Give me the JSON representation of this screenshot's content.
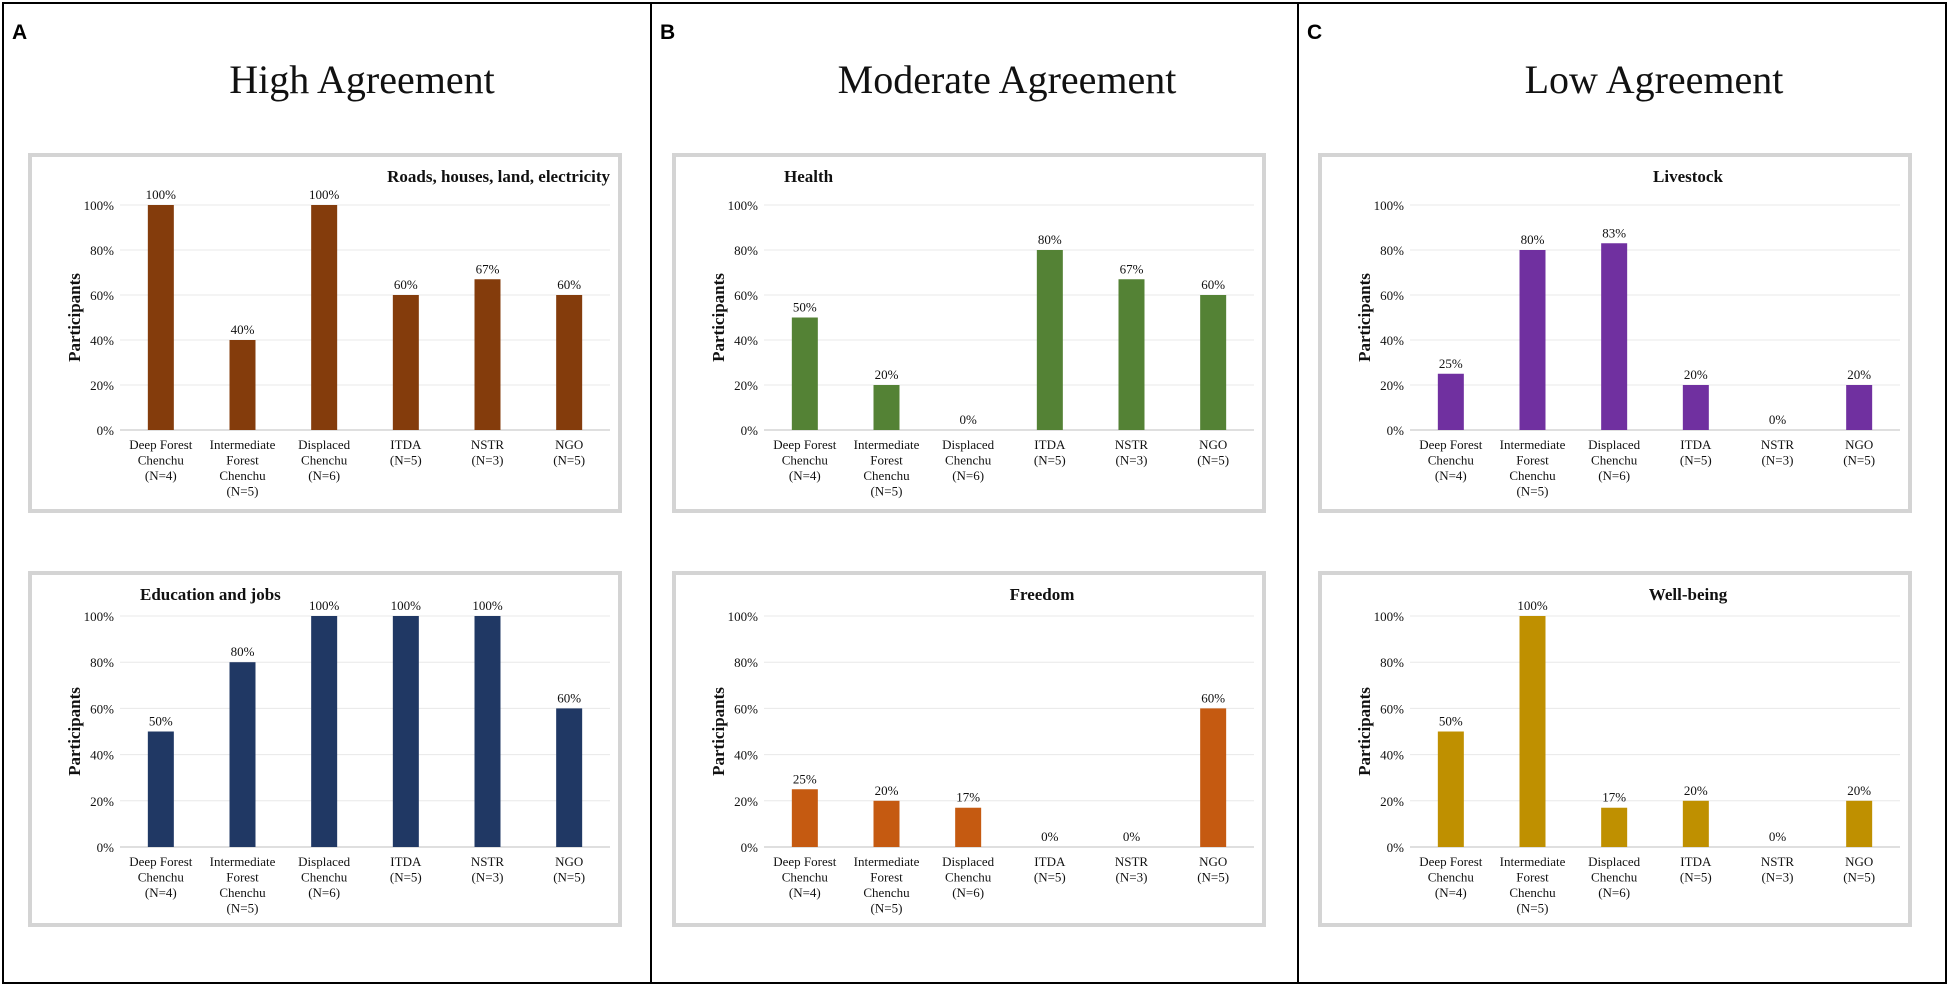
{
  "figure": {
    "panels": [
      {
        "letter": "A",
        "heading": "High Agreement"
      },
      {
        "letter": "B",
        "heading": "Moderate Agreement"
      },
      {
        "letter": "C",
        "heading": "Low Agreement"
      }
    ],
    "y_axis_label": "Participants",
    "y_tick_labels": [
      "0%",
      "20%",
      "40%",
      "60%",
      "80%",
      "100%"
    ],
    "category_labels": [
      [
        "Deep Forest",
        "Chenchu",
        "(N=4)"
      ],
      [
        "Intermediate",
        "Forest",
        "Chenchu",
        "(N=5)"
      ],
      [
        "Displaced",
        "Chenchu",
        "(N=6)"
      ],
      [
        "ITDA",
        "(N=5)"
      ],
      [
        "NSTR",
        "(N=3)"
      ],
      [
        "NGO",
        "(N=5)"
      ]
    ]
  },
  "colors": {
    "roads": "#843c0c",
    "education": "#203864",
    "health": "#548235",
    "freedom": "#c55a11",
    "livestock": "#7030a0",
    "wellbeing": "#bf9000"
  },
  "chart_data": [
    {
      "type": "bar",
      "panel": "A",
      "position": "top",
      "title": "Roads, houses, land, electricity",
      "categories": [
        "Deep Forest Chenchu (N=4)",
        "Intermediate Forest Chenchu (N=5)",
        "Displaced Chenchu (N=6)",
        "ITDA (N=5)",
        "NSTR (N=3)",
        "NGO (N=5)"
      ],
      "values": [
        100,
        40,
        100,
        60,
        67,
        60
      ],
      "value_labels": [
        "100%",
        "40%",
        "100%",
        "60%",
        "67%",
        "60%"
      ],
      "ylabel": "Participants",
      "ylim": [
        0,
        100
      ],
      "color": "#843c0c",
      "title_align": "right"
    },
    {
      "type": "bar",
      "panel": "A",
      "position": "bottom",
      "title": "Education and jobs",
      "categories": [
        "Deep Forest Chenchu (N=4)",
        "Intermediate Forest Chenchu (N=5)",
        "Displaced Chenchu (N=6)",
        "ITDA (N=5)",
        "NSTR (N=3)",
        "NGO (N=5)"
      ],
      "values": [
        50,
        80,
        100,
        100,
        100,
        60
      ],
      "value_labels": [
        "50%",
        "80%",
        "100%",
        "100%",
        "100%",
        "60%"
      ],
      "ylabel": "Participants",
      "ylim": [
        0,
        100
      ],
      "color": "#203864",
      "title_align": "left"
    },
    {
      "type": "bar",
      "panel": "B",
      "position": "top",
      "title": "Health",
      "categories": [
        "Deep Forest Chenchu (N=4)",
        "Intermediate Forest Chenchu (N=5)",
        "Displaced Chenchu (N=6)",
        "ITDA (N=5)",
        "NSTR (N=3)",
        "NGO (N=5)"
      ],
      "values": [
        50,
        20,
        0,
        80,
        67,
        60
      ],
      "value_labels": [
        "50%",
        "20%",
        "0%",
        "80%",
        "67%",
        "60%"
      ],
      "ylabel": "Participants",
      "ylim": [
        0,
        100
      ],
      "color": "#548235",
      "title_align": "left"
    },
    {
      "type": "bar",
      "panel": "B",
      "position": "bottom",
      "title": "Freedom",
      "categories": [
        "Deep Forest Chenchu (N=4)",
        "Intermediate Forest Chenchu (N=5)",
        "Displaced Chenchu (N=6)",
        "ITDA (N=5)",
        "NSTR (N=3)",
        "NGO (N=5)"
      ],
      "values": [
        25,
        20,
        17,
        0,
        0,
        60
      ],
      "value_labels": [
        "25%",
        "20%",
        "17%",
        "0%",
        "0%",
        "60%"
      ],
      "ylabel": "Participants",
      "ylim": [
        0,
        100
      ],
      "color": "#c55a11",
      "title_align": "center"
    },
    {
      "type": "bar",
      "panel": "C",
      "position": "top",
      "title": "Livestock",
      "categories": [
        "Deep Forest Chenchu (N=4)",
        "Intermediate Forest Chenchu (N=5)",
        "Displaced Chenchu (N=6)",
        "ITDA (N=5)",
        "NSTR (N=3)",
        "NGO (N=5)"
      ],
      "values": [
        25,
        80,
        83,
        20,
        0,
        20
      ],
      "value_labels": [
        "25%",
        "80%",
        "83%",
        "20%",
        "0%",
        "20%"
      ],
      "ylabel": "Participants",
      "ylim": [
        0,
        100
      ],
      "color": "#7030a0",
      "title_align": "center"
    },
    {
      "type": "bar",
      "panel": "C",
      "position": "bottom",
      "title": "Well-being",
      "categories": [
        "Deep Forest Chenchu (N=4)",
        "Intermediate Forest Chenchu (N=5)",
        "Displaced Chenchu (N=6)",
        "ITDA (N=5)",
        "NSTR (N=3)",
        "NGO (N=5)"
      ],
      "values": [
        50,
        100,
        17,
        20,
        0,
        20
      ],
      "value_labels": [
        "50%",
        "100%",
        "17%",
        "20%",
        "0%",
        "20%"
      ],
      "ylabel": "Participants",
      "ylim": [
        0,
        100
      ],
      "color": "#bf9000",
      "title_align": "center"
    }
  ]
}
